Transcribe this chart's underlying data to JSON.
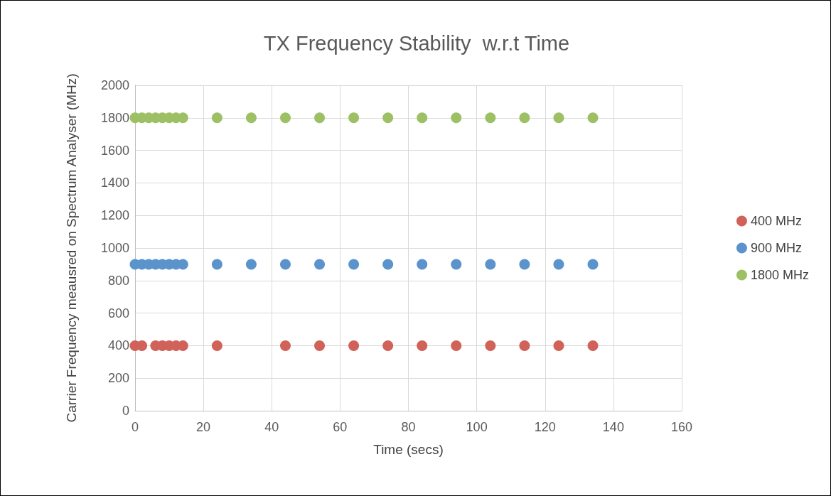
{
  "chart_data": {
    "type": "scatter",
    "title": "TX Frequency Stability  w.r.t Time",
    "xlabel": "Time (secs)",
    "ylabel": "Carrier Frequency meausred on Spectrum Analyser (MHz)",
    "series": [
      {
        "name": "400 MHz",
        "color": "#d0625a",
        "x": [
          0,
          2,
          6,
          8,
          10,
          12,
          14,
          24,
          44,
          54,
          64,
          74,
          84,
          94,
          104,
          114,
          124,
          134
        ],
        "values": [
          400,
          400,
          400,
          400,
          400,
          400,
          400,
          400,
          400,
          400,
          400,
          400,
          400,
          400,
          400,
          400,
          400,
          400
        ]
      },
      {
        "name": "900 MHz",
        "color": "#5b93cc",
        "x": [
          0,
          2,
          4,
          6,
          8,
          10,
          12,
          14,
          24,
          34,
          44,
          54,
          64,
          74,
          84,
          94,
          104,
          114,
          124,
          134
        ],
        "values": [
          900,
          900,
          900,
          900,
          900,
          900,
          900,
          900,
          900,
          900,
          900,
          900,
          900,
          900,
          900,
          900,
          900,
          900,
          900,
          900
        ]
      },
      {
        "name": "1800 MHz",
        "color": "#9dc064",
        "x": [
          0,
          2,
          4,
          6,
          8,
          10,
          12,
          14,
          24,
          34,
          44,
          54,
          64,
          74,
          84,
          94,
          104,
          114,
          124,
          134
        ],
        "values": [
          1800,
          1800,
          1800,
          1800,
          1800,
          1800,
          1800,
          1800,
          1800,
          1800,
          1800,
          1800,
          1800,
          1800,
          1800,
          1800,
          1800,
          1800,
          1800,
          1800
        ]
      }
    ],
    "xlim": [
      0,
      160
    ],
    "xticks": [
      0,
      20,
      40,
      60,
      80,
      100,
      120,
      140,
      160
    ],
    "ylim": [
      0,
      2000
    ],
    "yticks": [
      0,
      200,
      400,
      600,
      800,
      1000,
      1200,
      1400,
      1600,
      1800,
      2000
    ],
    "grid": true,
    "legend": "right",
    "marker": "circle"
  }
}
